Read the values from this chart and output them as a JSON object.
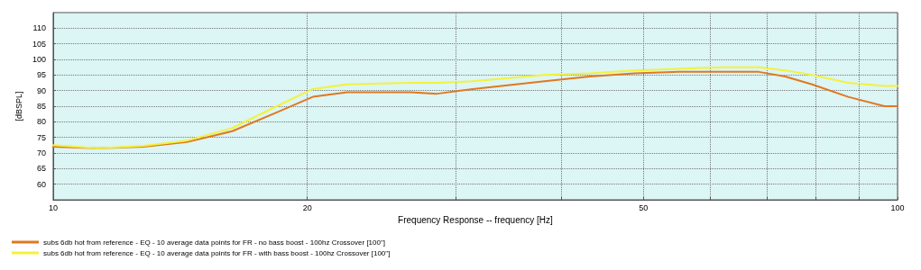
{
  "chart_data": {
    "type": "line",
    "xlabel": "Frequency Response -- frequency [Hz]",
    "ylabel": "[dBSPL]",
    "log": "x",
    "xlim": [
      10,
      100
    ],
    "xticks": [
      10,
      20,
      {
        "value": 30,
        "label": null
      },
      {
        "value": 40,
        "label": null
      },
      50,
      {
        "value": 60,
        "label": null
      },
      {
        "value": 70,
        "label": null
      },
      {
        "value": 80,
        "label": null
      },
      {
        "value": 90,
        "label": null
      },
      100
    ],
    "ylim": [
      55,
      115
    ],
    "yticks": [
      60,
      65,
      70,
      75,
      80,
      85,
      90,
      95,
      100,
      105,
      110
    ],
    "grid": true,
    "legend": "bottom",
    "marker": "none",
    "line_style": "solid",
    "x": [
      10,
      11.3,
      12.8,
      14.4,
      16.3,
      18.4,
      20.3,
      22.3,
      26.5,
      28.5,
      31.4,
      38.2,
      43.2,
      48.8,
      55.1,
      62.2,
      68.5,
      73.6,
      79.2,
      87.4,
      96.5,
      100
    ],
    "series": [
      {
        "name": "subs 6db hot from reference - EQ - 10 average data points for FR - no bass boost - 100hz Crossover [100\"]",
        "color": "#e07820",
        "values": [
          72,
          71.5,
          72,
          73.5,
          77,
          83,
          88,
          89.5,
          89.5,
          89,
          90.5,
          93,
          94.5,
          95.5,
          96,
          96,
          96,
          94.5,
          92,
          88,
          85,
          85
        ]
      },
      {
        "name": "subs 6db hot from reference - EQ - 10 average data points for FR - with bass boost - 100hz Crossover [100\"]",
        "color": "#f2f23c",
        "values": [
          72.5,
          71.5,
          72.3,
          74,
          78,
          85,
          90.5,
          92,
          92.5,
          92.5,
          93,
          95,
          95.5,
          96.5,
          97,
          97.5,
          97.5,
          96.5,
          95,
          92.5,
          91.5,
          91.5
        ]
      }
    ]
  }
}
